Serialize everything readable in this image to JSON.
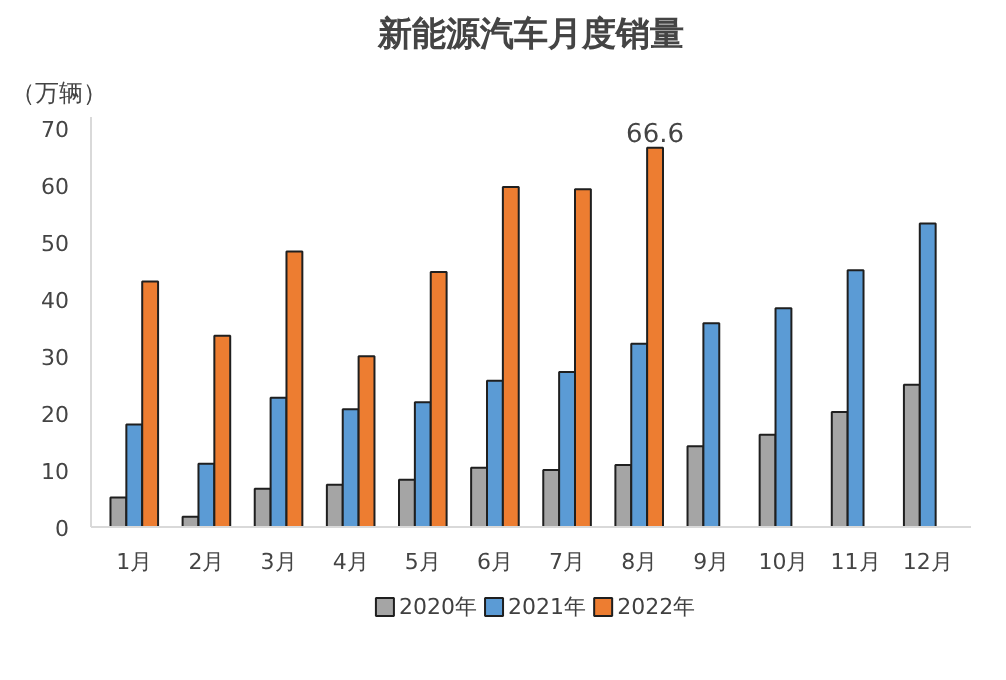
{
  "chart_data": {
    "type": "bar",
    "title": "新能源汽车月度销量",
    "ylabel": "（万辆）",
    "categories": [
      "1月",
      "2月",
      "3月",
      "4月",
      "5月",
      "6月",
      "7月",
      "8月",
      "9月",
      "10月",
      "11月",
      "12月"
    ],
    "series": [
      {
        "name": "2020年",
        "color": "#a5a5a5",
        "values": [
          5.2,
          1.8,
          6.7,
          7.4,
          8.3,
          10.4,
          10.0,
          10.9,
          14.2,
          16.2,
          20.2,
          25.0
        ]
      },
      {
        "name": "2021年",
        "color": "#5b9bd5",
        "values": [
          18.0,
          11.1,
          22.7,
          20.7,
          21.9,
          25.7,
          27.2,
          32.2,
          35.8,
          38.4,
          45.1,
          53.3
        ]
      },
      {
        "name": "2022年",
        "color": "#ed7d31",
        "values": [
          43.1,
          33.6,
          48.4,
          30.0,
          44.8,
          59.7,
          59.3,
          66.6,
          null,
          null,
          null,
          null
        ],
        "value_labels": [
          null,
          null,
          null,
          null,
          null,
          null,
          null,
          "66.6",
          null,
          null,
          null,
          null
        ]
      }
    ],
    "ylim": [
      0,
      72
    ],
    "yticks": [
      0,
      10,
      20,
      30,
      40,
      50,
      60,
      70
    ],
    "grid": false,
    "legend": "bottom"
  }
}
